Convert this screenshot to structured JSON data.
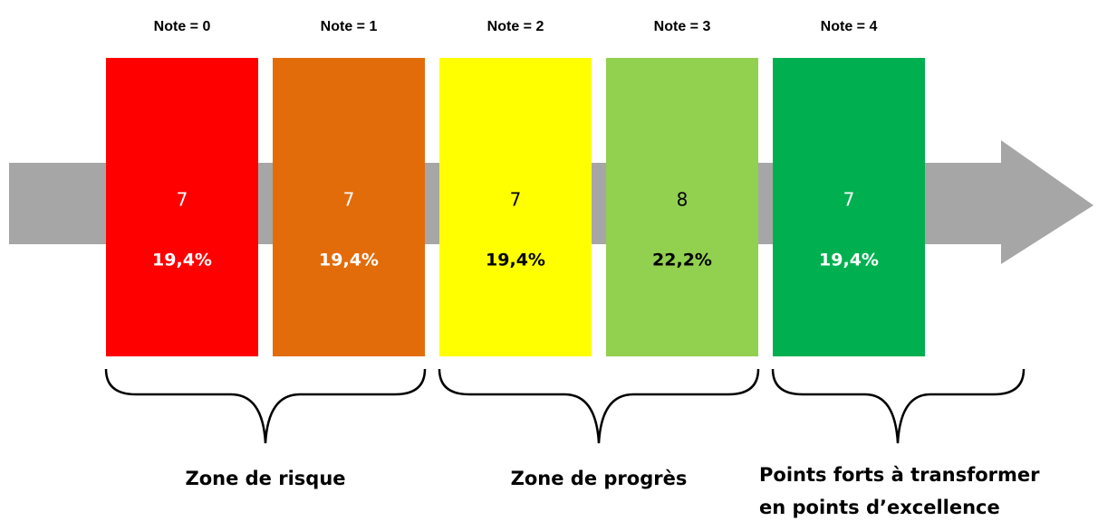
{
  "columns": [
    {
      "label": "Note = 0",
      "count": 7,
      "percent": "19,4%",
      "color": "#ff0000",
      "text_color": "#ffffff"
    },
    {
      "label": "Note = 1",
      "count": 7,
      "percent": "19,4%",
      "color": "#e36c0a",
      "text_color": "#ffffff"
    },
    {
      "label": "Note = 2",
      "count": 7,
      "percent": "19,4%",
      "color": "#ffff00",
      "text_color": "#000000"
    },
    {
      "label": "Note = 3",
      "count": 8,
      "percent": "22,2%",
      "color": "#92d050",
      "text_color": "#000000"
    },
    {
      "label": "Note = 4",
      "count": 7,
      "percent": "19,4%",
      "color": "#00b050",
      "text_color": "#ffffff"
    }
  ],
  "zones": [
    {
      "lines": [
        "Zone de risque"
      ]
    },
    {
      "lines": [
        "Zone de progrès"
      ]
    },
    {
      "lines": [
        "Points forts à transformer",
        "en points d’excellence"
      ]
    }
  ]
}
